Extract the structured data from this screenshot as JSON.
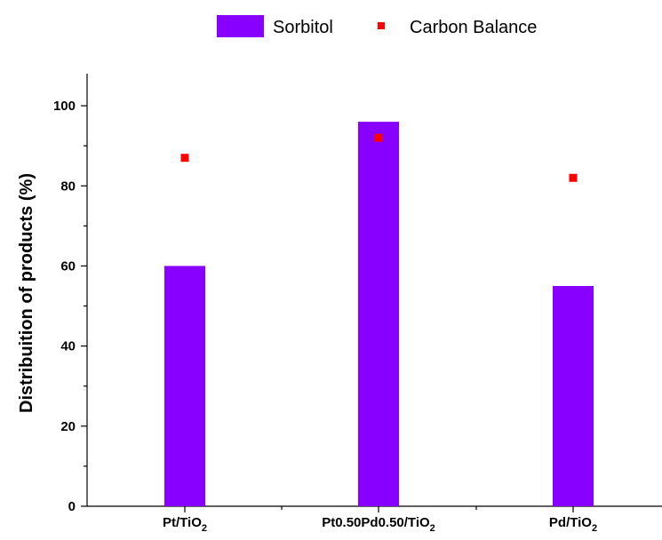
{
  "chart_data": {
    "type": "bar",
    "categories": [
      {
        "base": "Pt/TiO",
        "sub": "2"
      },
      {
        "base": "Pt0.50Pd0.50/TiO",
        "sub": "2"
      },
      {
        "base": "Pd/TiO",
        "sub": "2"
      }
    ],
    "series": [
      {
        "name": "Sorbitol",
        "kind": "bar",
        "values": [
          60,
          96,
          55
        ],
        "color": "#8800ff"
      },
      {
        "name": "Carbon Balance",
        "kind": "marker",
        "values": [
          87,
          92,
          82
        ],
        "color": "#ff0000"
      }
    ],
    "xlabel": "",
    "ylabel": "Distribuition of products (%)",
    "ylim": [
      0,
      108
    ],
    "yticks": [
      0,
      20,
      40,
      60,
      80,
      100
    ],
    "legend_position": "top"
  }
}
